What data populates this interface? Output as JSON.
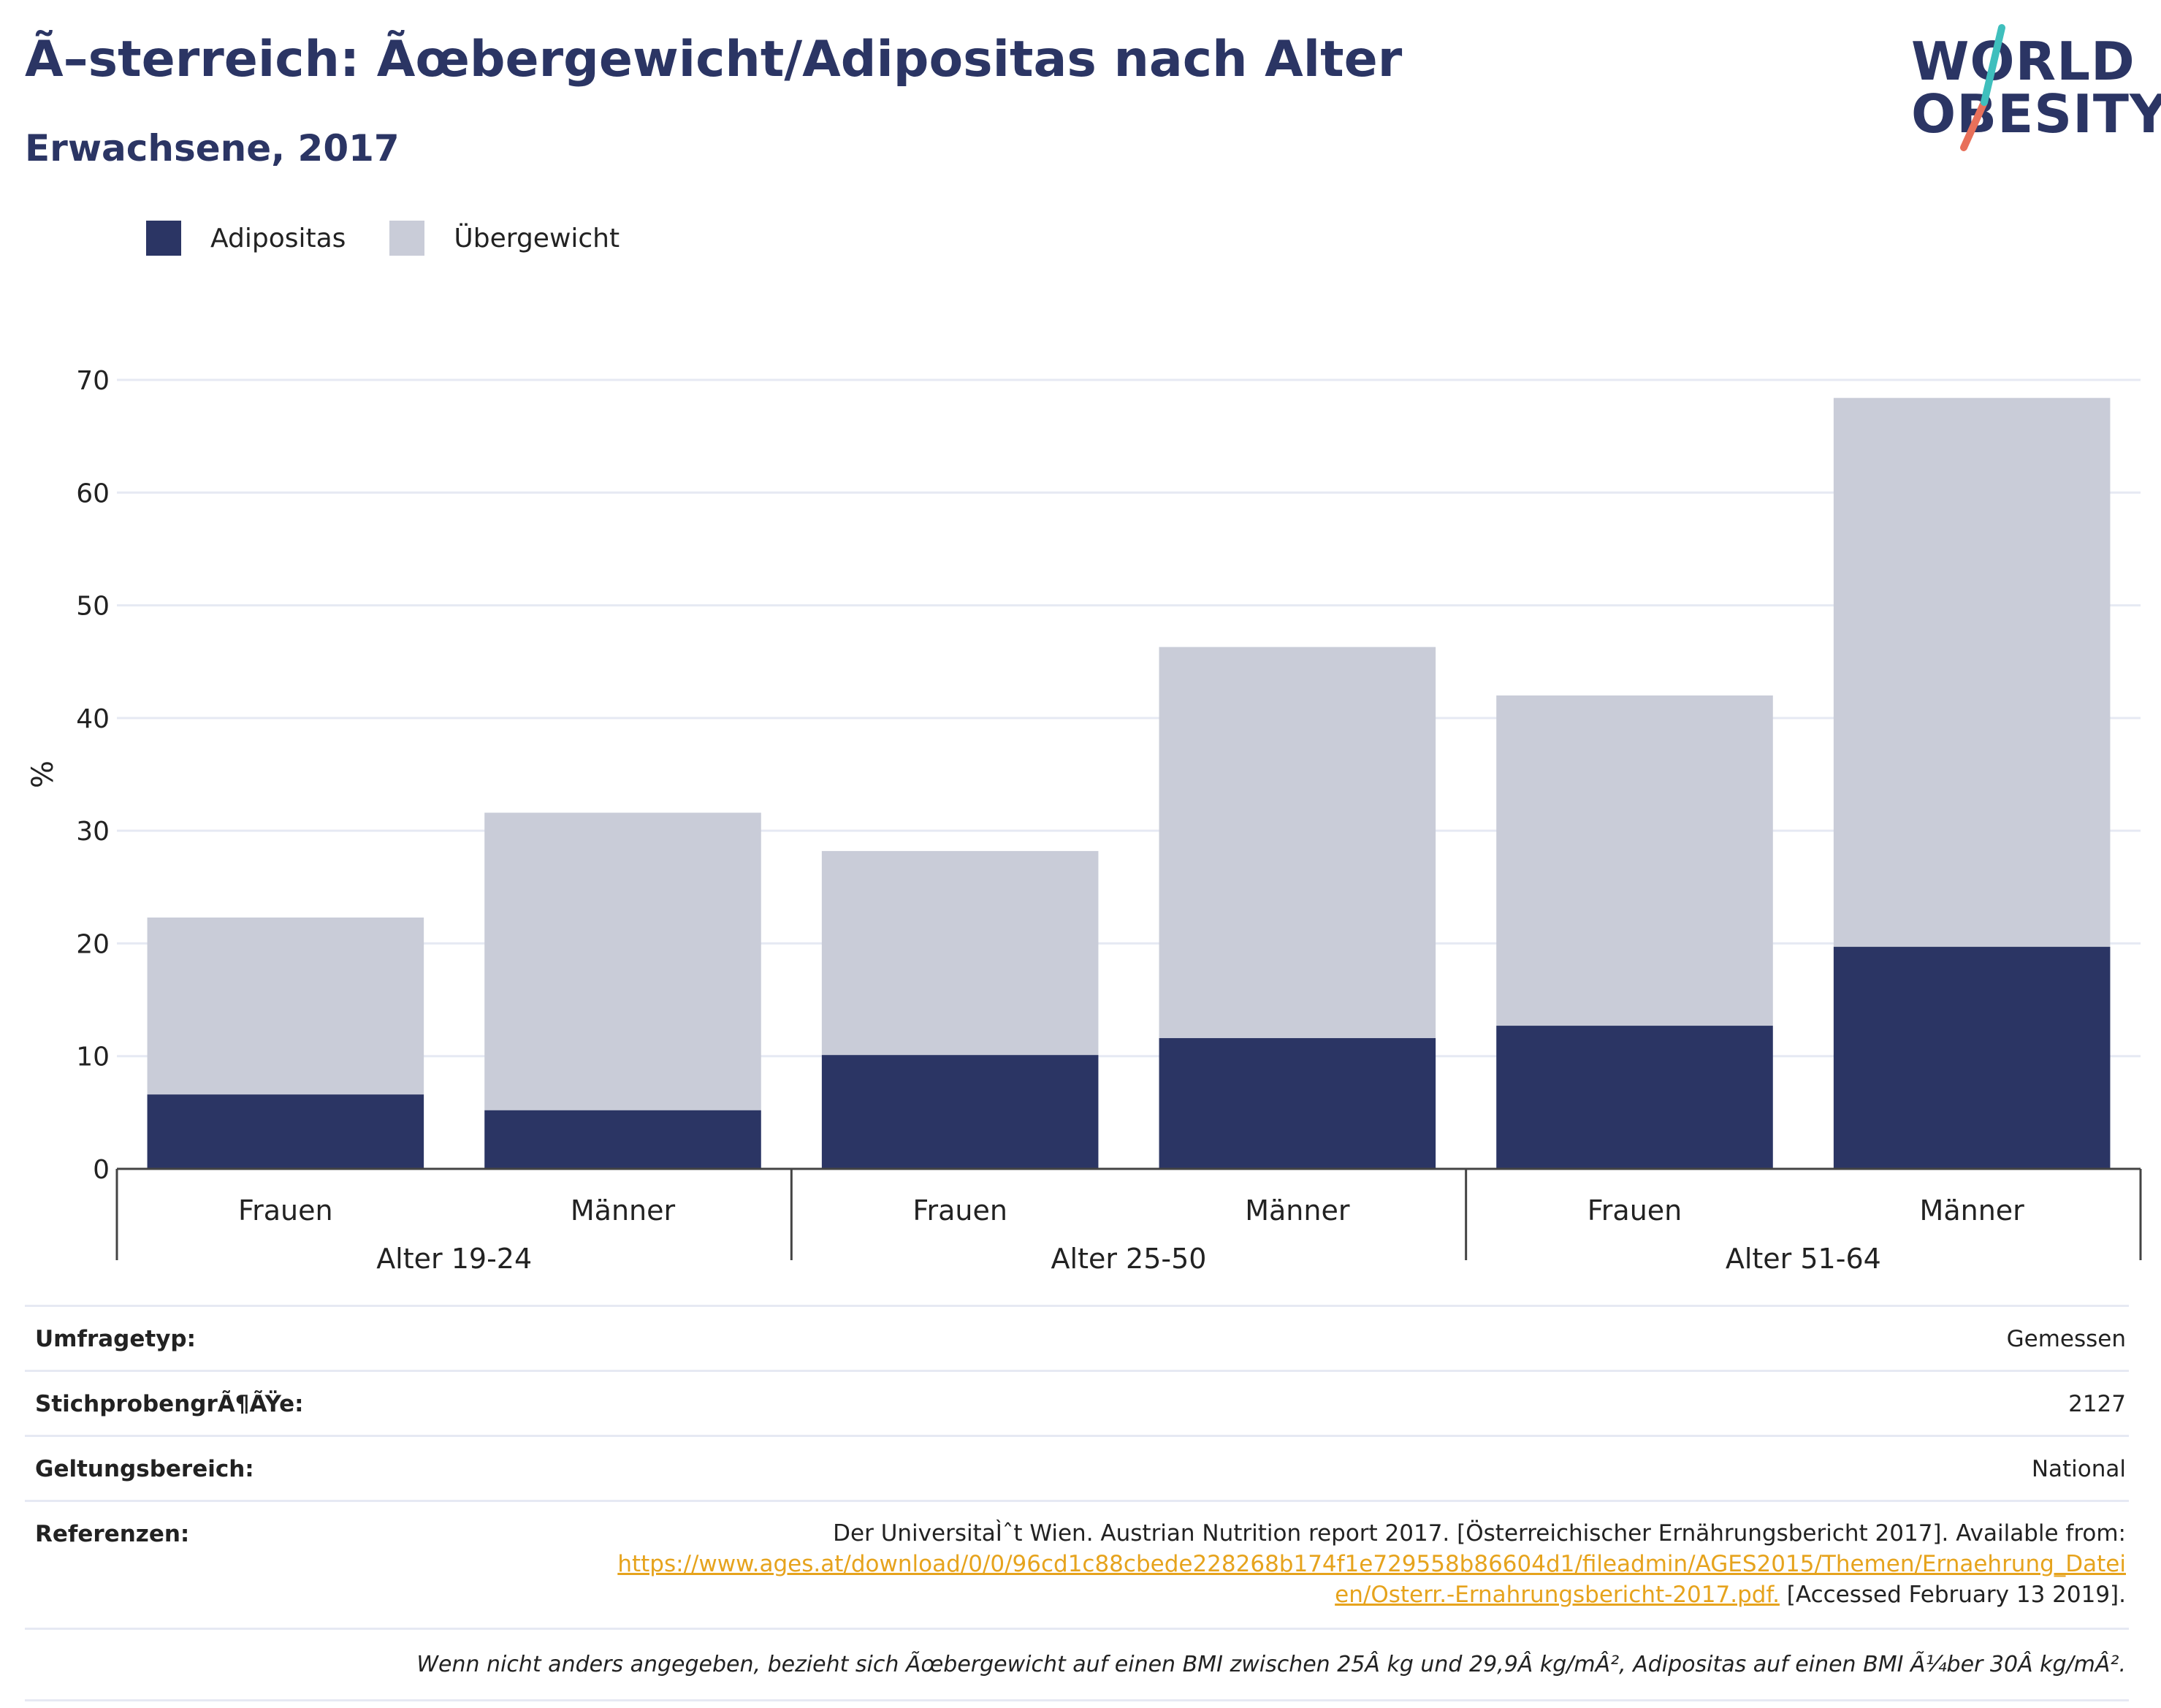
{
  "header": {
    "title": "Ã–sterreich: Ãœbergewicht/Adipositas nach Alter",
    "subtitle": "Erwachsene, 2017"
  },
  "logo": {
    "line1": "WORLD",
    "line2": "OBESITY",
    "colors": {
      "text": "#2b3564",
      "slash_top": "#3fbfbd",
      "slash_bottom": "#e8705a"
    }
  },
  "colors": {
    "adipositas": "#2b3564",
    "uebergewicht": "#c9ccd8",
    "grid": "#e6e9f3",
    "axis": "#444444",
    "link": "#e6a31d"
  },
  "chart_data": {
    "type": "bar",
    "stacked": true,
    "ylabel": "%",
    "ylim": [
      0,
      70
    ],
    "yticks": [
      0,
      10,
      20,
      30,
      40,
      50,
      60,
      70
    ],
    "grid": true,
    "legend_position": "top-left",
    "groups": [
      "Alter 19-24",
      "Alter 25-50",
      "Alter 51-64"
    ],
    "categories": [
      "Frauen",
      "Männer",
      "Frauen",
      "Männer",
      "Frauen",
      "Männer"
    ],
    "series": [
      {
        "name": "Adipositas",
        "values": [
          6.6,
          5.2,
          10.1,
          11.6,
          12.7,
          19.7
        ]
      },
      {
        "name": "Übergewicht",
        "values": [
          15.7,
          26.4,
          18.1,
          34.7,
          29.3,
          48.7
        ]
      }
    ]
  },
  "info": {
    "rows": [
      {
        "key": "Umfragetyp:",
        "value": "Gemessen"
      },
      {
        "key": "StichprobengrÃ¶ÃŸe:",
        "value": "2127"
      },
      {
        "key": "Geltungsbereich:",
        "value": "National"
      }
    ],
    "references": {
      "key": "Referenzen:",
      "text_before": "Der UniversitaÌˆt Wien. Austrian Nutrition report 2017. [Österreichischer Ernährungsbericht 2017]. Available from:",
      "link_line1": "https://www.ages.at/download/0/0/96cd1c88cbede228268b174f1e729558b86604d1/fileadmin/AGES2015/Themen/Ernaehrung_Datei",
      "link_line2": "en/Osterr.-Ernahrungsbericht-2017.pdf.",
      "text_after": " [Accessed February 13 2019]."
    },
    "note": "Wenn nicht anders angegeben, bezieht sich Ãœbergewicht auf einen BMI zwischen 25Â kg und 29,9Â kg/mÂ², Adipositas auf einen BMI Ã¼ber 30Â kg/mÂ²."
  }
}
